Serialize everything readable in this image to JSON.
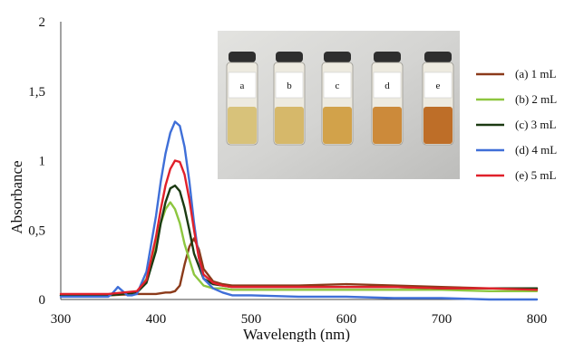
{
  "chart_data": {
    "type": "line",
    "xlabel": "Wavelength (nm)",
    "ylabel": "Absorbance",
    "xlim": [
      300,
      800
    ],
    "ylim": [
      0,
      2
    ],
    "xticks": [
      300,
      400,
      500,
      600,
      700,
      800
    ],
    "yticks": [
      {
        "value": 0,
        "label": "0"
      },
      {
        "value": 0.5,
        "label": "0,5"
      },
      {
        "value": 1,
        "label": "1"
      },
      {
        "value": 1.5,
        "label": "1,5"
      },
      {
        "value": 2,
        "label": "2"
      }
    ],
    "grid": false,
    "legend_position": "right",
    "series": [
      {
        "name": "(a) 1 mL",
        "color": "#8B3A1A",
        "x": [
          300,
          350,
          380,
          400,
          410,
          415,
          420,
          425,
          430,
          435,
          440,
          445,
          450,
          460,
          470,
          480,
          500,
          550,
          600,
          650,
          700,
          750,
          800
        ],
        "y": [
          0.03,
          0.03,
          0.04,
          0.04,
          0.05,
          0.05,
          0.06,
          0.1,
          0.25,
          0.38,
          0.44,
          0.36,
          0.22,
          0.13,
          0.11,
          0.1,
          0.1,
          0.1,
          0.11,
          0.1,
          0.09,
          0.08,
          0.08
        ]
      },
      {
        "name": "(b) 2 mL",
        "color": "#8DC63F",
        "x": [
          300,
          350,
          380,
          390,
          400,
          405,
          410,
          415,
          420,
          425,
          430,
          440,
          450,
          460,
          470,
          480,
          500,
          550,
          600,
          650,
          700,
          750,
          800
        ],
        "y": [
          0.03,
          0.03,
          0.05,
          0.15,
          0.4,
          0.55,
          0.65,
          0.7,
          0.65,
          0.55,
          0.4,
          0.18,
          0.1,
          0.08,
          0.08,
          0.07,
          0.07,
          0.07,
          0.07,
          0.07,
          0.07,
          0.06,
          0.06
        ]
      },
      {
        "name": "(c) 3 mL",
        "color": "#1B3A12",
        "x": [
          300,
          350,
          380,
          390,
          400,
          405,
          410,
          415,
          420,
          425,
          430,
          435,
          440,
          450,
          460,
          470,
          480,
          500,
          550,
          600,
          650,
          700,
          750,
          800
        ],
        "y": [
          0.03,
          0.03,
          0.05,
          0.12,
          0.35,
          0.55,
          0.7,
          0.8,
          0.82,
          0.78,
          0.66,
          0.5,
          0.33,
          0.15,
          0.11,
          0.1,
          0.09,
          0.09,
          0.09,
          0.09,
          0.09,
          0.08,
          0.08,
          0.08
        ]
      },
      {
        "name": "(d) 4 mL",
        "color": "#3F6FD8",
        "x": [
          300,
          350,
          355,
          360,
          365,
          370,
          375,
          380,
          390,
          400,
          405,
          410,
          415,
          420,
          425,
          430,
          435,
          440,
          445,
          450,
          460,
          470,
          480,
          500,
          550,
          600,
          650,
          700,
          750,
          800
        ],
        "y": [
          0.02,
          0.02,
          0.05,
          0.09,
          0.06,
          0.03,
          0.03,
          0.04,
          0.2,
          0.6,
          0.85,
          1.05,
          1.2,
          1.28,
          1.25,
          1.1,
          0.85,
          0.55,
          0.3,
          0.15,
          0.08,
          0.05,
          0.03,
          0.03,
          0.02,
          0.02,
          0.01,
          0.01,
          0.0,
          0.0
        ]
      },
      {
        "name": "(e) 5 mL",
        "color": "#E0202A",
        "x": [
          300,
          350,
          380,
          390,
          400,
          405,
          410,
          415,
          420,
          425,
          430,
          435,
          440,
          445,
          450,
          460,
          470,
          480,
          500,
          550,
          600,
          650,
          700,
          750,
          800
        ],
        "y": [
          0.04,
          0.04,
          0.06,
          0.14,
          0.45,
          0.65,
          0.82,
          0.94,
          1.0,
          0.99,
          0.9,
          0.72,
          0.5,
          0.3,
          0.18,
          0.12,
          0.1,
          0.09,
          0.09,
          0.09,
          0.09,
          0.09,
          0.08,
          0.08,
          0.07
        ]
      }
    ]
  },
  "inset": {
    "vials": [
      {
        "label": "a",
        "liquid_color": "#D8C27A"
      },
      {
        "label": "b",
        "liquid_color": "#D6B86A"
      },
      {
        "label": "c",
        "liquid_color": "#D2A24A"
      },
      {
        "label": "d",
        "liquid_color": "#CC8A3A"
      },
      {
        "label": "e",
        "liquid_color": "#BE6E28"
      }
    ]
  }
}
